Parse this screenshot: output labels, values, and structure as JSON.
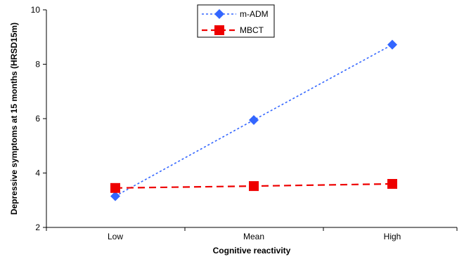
{
  "chart_data": {
    "type": "line",
    "categories": [
      "Low",
      "Mean",
      "High"
    ],
    "series": [
      {
        "name": "m-ADM",
        "values": [
          3.15,
          5.95,
          8.72
        ],
        "color": "#3366ff",
        "marker": "diamond",
        "line_style": "dotted"
      },
      {
        "name": "MBCT",
        "values": [
          3.45,
          3.52,
          3.6
        ],
        "color": "#ee0000",
        "marker": "square",
        "line_style": "dashed"
      }
    ],
    "title": "",
    "xlabel": "Cognitive reactivity",
    "ylabel": "Depressive symptoms at 15 months (HRSD15m)",
    "ylim": [
      2,
      10
    ],
    "yticks": [
      2,
      4,
      6,
      8,
      10
    ],
    "grid": false,
    "legend": "top-center"
  }
}
